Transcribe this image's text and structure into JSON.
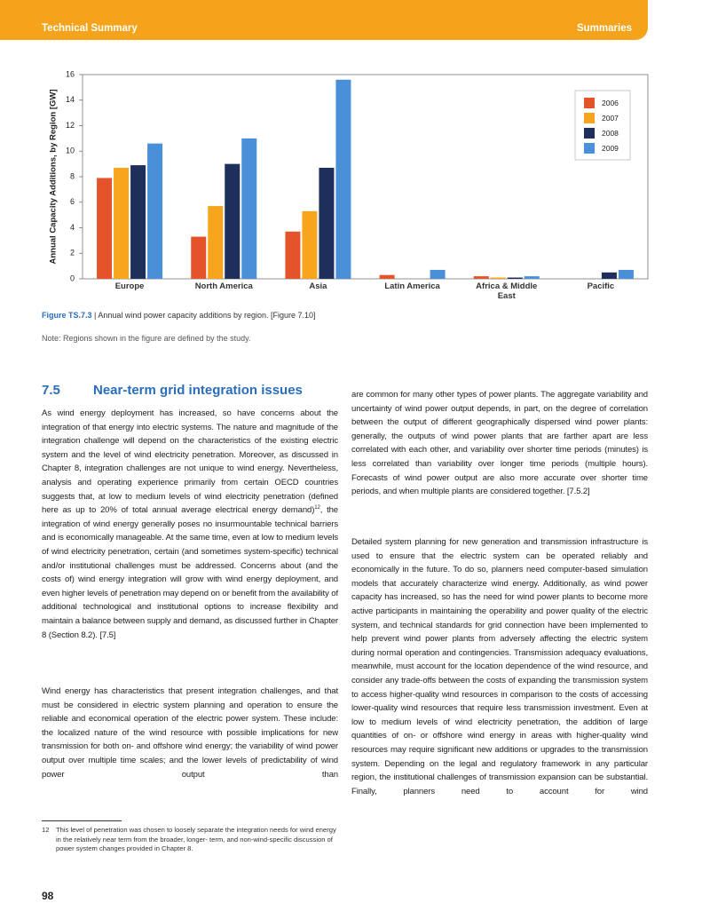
{
  "header": {
    "left": "Technical Summary",
    "right": "Summaries"
  },
  "chart_data": {
    "type": "bar",
    "y_label": "Annual Capacity Additions, by Region [GW]",
    "categories": [
      "Europe",
      "North America",
      "Asia",
      "Latin America",
      "Africa & Middle East",
      "Pacific"
    ],
    "series": [
      {
        "name": "2006",
        "color": "#e5532a",
        "values": [
          7.9,
          3.3,
          3.7,
          0.3,
          0.2,
          0
        ]
      },
      {
        "name": "2007",
        "color": "#f7a51c",
        "values": [
          8.7,
          5.7,
          5.3,
          0,
          0.1,
          0
        ]
      },
      {
        "name": "2008",
        "color": "#1d2f5a",
        "values": [
          8.9,
          9.0,
          8.7,
          0,
          0.1,
          0.5
        ]
      },
      {
        "name": "2009",
        "color": "#4a90d9",
        "values": [
          10.6,
          11.0,
          15.6,
          0.7,
          0.2,
          0.7
        ]
      }
    ],
    "ylim": [
      0,
      16
    ],
    "yticks": [
      0,
      2,
      4,
      6,
      8,
      10,
      12,
      14,
      16
    ],
    "grid": false,
    "legend": "top-right"
  },
  "figure": {
    "label": "Figure TS.7.3",
    "caption": " | Annual wind power capacity additions by region. [Figure 7.10]",
    "note": "Note: Regions shown in the figure are defined by the study."
  },
  "section": {
    "number": "7.5",
    "title": "Near-term grid integration issues"
  },
  "left_column": {
    "p1_before": "As wind energy deployment has increased, so have concerns about the integration of that energy into electric systems. The nature and magnitude of the integration challenge will depend on the characteristics of the existing electric system and the level of wind electricity penetration. Moreover, as discussed in Chapter 8, integration challenges are not unique to wind energy. Nevertheless, analysis and operating experience primarily from certain OECD countries suggests that, at low to medium levels of wind electricity penetration (defined here as up to 20% of total annual average electrical energy demand)",
    "p1_ref": "12",
    "p1_after": ", the integration of wind energy generally poses no insurmountable technical barriers and is economically manageable. At the same time, even at low to medium levels of wind electricity penetration, certain (and sometimes system-specific) technical and/or institutional challenges must be addressed. Concerns about (and the costs of) wind energy integration will grow with wind energy deployment, and even higher levels of penetration may depend on or benefit from the availability of additional technological and institutional options to increase flexibility and maintain a balance between supply and demand, as discussed further in Chapter 8 (Section 8.2). [7.5]",
    "p2": "Wind energy has characteristics that present integration challenges, and that must be considered in electric system planning and operation to ensure the reliable and economical operation of the electric power system. These include: the localized nature of the wind resource with possible implications for new transmission for both on- and offshore wind energy; the variability of wind power output over multiple time scales; and the lower levels of predictability of wind power output than"
  },
  "footnote": {
    "number": "12",
    "text": "This level of penetration was chosen to loosely separate the integration needs for wind energy in the relatively near term from the broader, longer- term, and non-wind-specific discussion of power system changes provided in Chapter 8."
  },
  "right_column": {
    "p1": "are common for many other types of power plants. The aggregate variability and uncertainty of wind power output depends, in part, on the degree of correlation between the output of different geographically dispersed wind power plants: generally, the outputs of wind power plants that are farther apart are less correlated with each other, and variability over shorter time periods (minutes) is less correlated than variability over longer time periods (multiple hours). Forecasts of wind power output are also more accurate over shorter time periods, and when multiple plants are considered together. [7.5.2]",
    "p2": "Detailed system planning for new generation and transmission infrastructure is used to ensure that the electric system can be operated reliably and economically in the future. To do so, planners need computer-based simulation models that accurately characterize wind energy. Additionally, as wind power capacity has increased, so has the need for wind power plants to become more active participants in maintaining the operability and power quality of the electric system, and technical standards for grid connection have been implemented to help prevent wind power plants from adversely affecting the electric system during normal operation and contingencies. Transmission adequacy evaluations, meanwhile, must account for the location dependence of the wind resource, and consider any trade-offs between the costs of expanding the transmission system to access higher-quality wind resources in comparison to the costs of accessing lower-quality wind resources that require less transmission investment. Even at low to medium levels of wind electricity penetration, the addition of large quantities of on- or offshore wind energy in areas with higher-quality wind resources may require significant new additions or upgrades to the transmission system. Depending on the legal and regulatory framework in any particular region, the institutional challenges of transmission expansion can be substantial. Finally, planners need to account for wind"
  },
  "page_number": "98"
}
